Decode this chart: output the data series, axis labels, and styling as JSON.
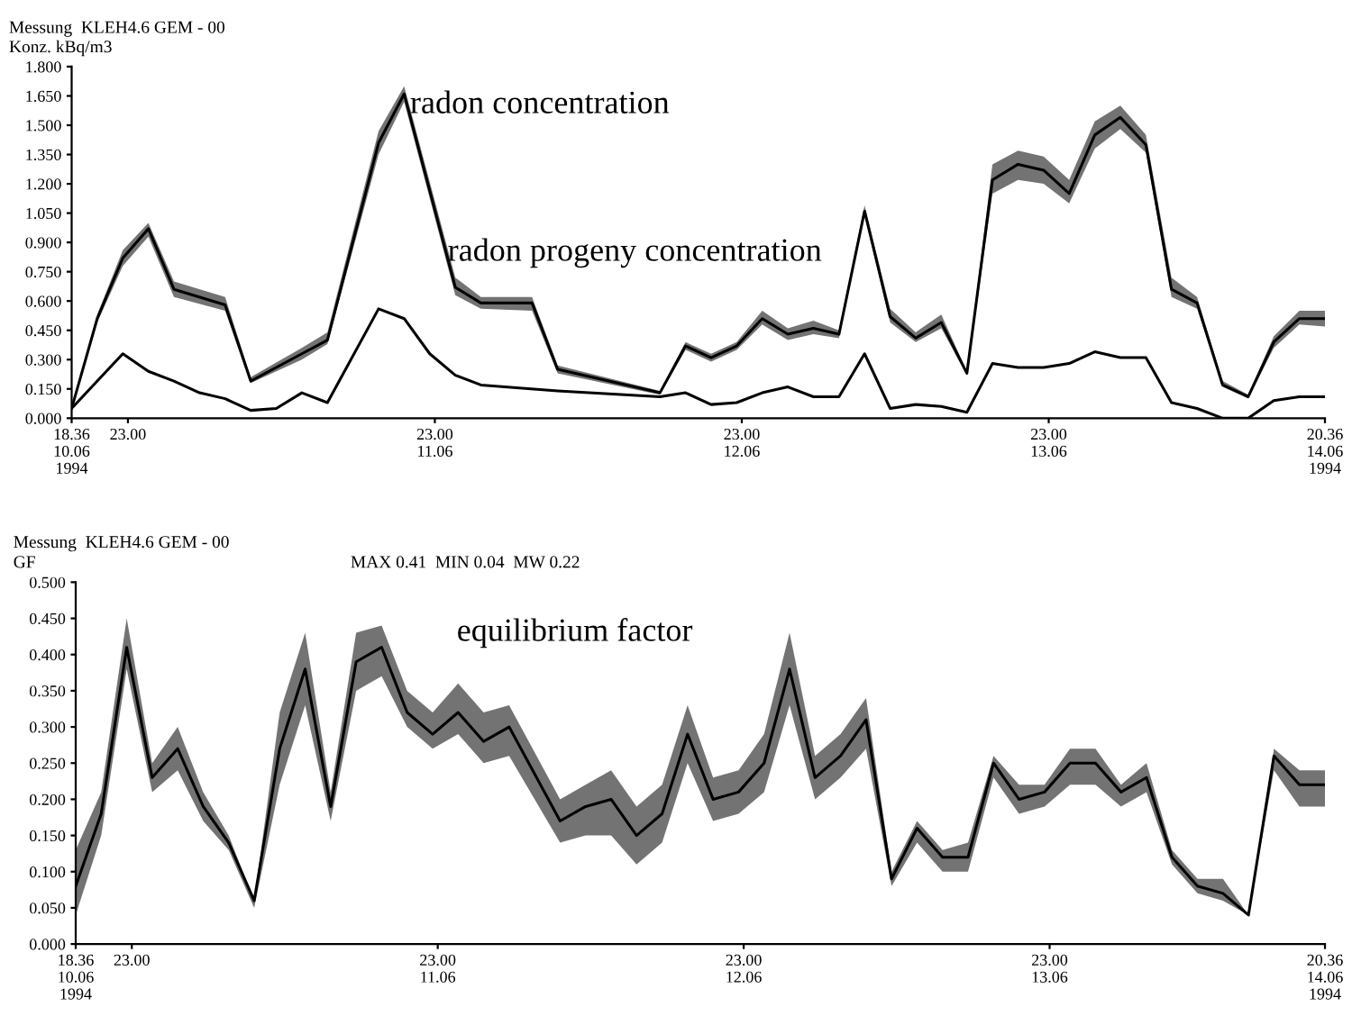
{
  "chart_data": [
    {
      "type": "line",
      "title": "Messung  KLEH4.6 GEM - 00",
      "ylabel": "Konz. kBq/m3",
      "xlim": [
        "1994-06-10T18:36",
        "1994-06-14T20:36"
      ],
      "xticks": [
        {
          "value": "1994-06-10T18:36",
          "label": "18.36\n10.06\n1994"
        },
        {
          "value": "1994-06-10T23:00",
          "label": "23.00"
        },
        {
          "value": "1994-06-11T23:00",
          "label": "23.00\n11.06"
        },
        {
          "value": "1994-06-12T23:00",
          "label": "23.00\n12.06"
        },
        {
          "value": "1994-06-13T23:00",
          "label": "23.00\n13.06"
        },
        {
          "value": "1994-06-14T20:36",
          "label": "20.36\n14.06\n1994"
        }
      ],
      "ylim": [
        0,
        1.8
      ],
      "yticks": [
        {
          "value": 0,
          "label": "0.000"
        },
        {
          "value": 0.15,
          "label": "0.150"
        },
        {
          "value": 0.3,
          "label": "0.300"
        },
        {
          "value": 0.45,
          "label": "0.450"
        },
        {
          "value": 0.6,
          "label": "0.600"
        },
        {
          "value": 0.75,
          "label": "0.750"
        },
        {
          "value": 0.9,
          "label": "0.900"
        },
        {
          "value": 1.05,
          "label": "1.050"
        },
        {
          "value": 1.2,
          "label": "1.200"
        },
        {
          "value": 1.35,
          "label": "1.350"
        },
        {
          "value": 1.5,
          "label": "1.500"
        },
        {
          "value": 1.65,
          "label": "1.650"
        },
        {
          "value": 1.8,
          "label": "1.800"
        }
      ],
      "grid": false,
      "marker": "none",
      "line_style": "solid",
      "annotations": [
        "radon concentration",
        "radon progeny concentration"
      ],
      "series": [
        {
          "color": "#000000",
          "x": [
            "1994-06-10T18:36",
            "1994-06-10T20:36",
            "1994-06-10T22:36",
            "1994-06-11T00:36",
            "1994-06-11T02:36",
            "1994-06-11T06:36",
            "1994-06-11T08:36",
            "1994-06-11T12:36",
            "1994-06-11T14:36",
            "1994-06-11T18:36",
            "1994-06-11T20:36",
            "1994-06-12T00:36",
            "1994-06-12T02:36",
            "1994-06-12T06:36",
            "1994-06-12T08:36",
            "1994-06-12T16:36",
            "1994-06-12T18:36",
            "1994-06-12T20:36",
            "1994-06-12T22:36",
            "1994-06-13T00:36",
            "1994-06-13T02:36",
            "1994-06-13T04:36",
            "1994-06-13T06:36",
            "1994-06-13T08:36",
            "1994-06-13T10:36",
            "1994-06-13T12:36",
            "1994-06-13T14:36",
            "1994-06-13T16:36",
            "1994-06-13T18:36",
            "1994-06-13T20:36",
            "1994-06-13T22:36",
            "1994-06-14T00:36",
            "1994-06-14T02:36",
            "1994-06-14T04:36",
            "1994-06-14T06:36",
            "1994-06-14T08:36",
            "1994-06-14T10:36",
            "1994-06-14T12:36",
            "1994-06-14T14:36",
            "1994-06-14T16:36",
            "1994-06-14T18:36",
            "1994-06-14T20:36"
          ],
          "values": [
            0.05,
            0.51,
            0.82,
            0.97,
            0.66,
            0.58,
            0.19,
            0.33,
            0.4,
            1.41,
            1.66,
            0.67,
            0.59,
            0.59,
            0.25,
            0.13,
            0.37,
            0.31,
            0.37,
            0.51,
            0.43,
            0.46,
            0.43,
            1.06,
            0.52,
            0.41,
            0.49,
            0.23,
            1.22,
            1.3,
            1.27,
            1.15,
            1.45,
            1.54,
            1.4,
            0.66,
            0.59,
            0.17,
            0.11,
            0.39,
            0.51,
            0.51
          ],
          "lower": [
            0.05,
            0.49,
            0.78,
            0.93,
            0.62,
            0.55,
            0.18,
            0.3,
            0.38,
            1.35,
            1.62,
            0.63,
            0.56,
            0.55,
            0.23,
            0.12,
            0.35,
            0.29,
            0.35,
            0.48,
            0.4,
            0.43,
            0.41,
            1.04,
            0.49,
            0.39,
            0.46,
            0.22,
            1.15,
            1.22,
            1.2,
            1.1,
            1.38,
            1.48,
            1.36,
            0.62,
            0.56,
            0.16,
            0.1,
            0.36,
            0.48,
            0.47
          ],
          "upper": [
            0.05,
            0.53,
            0.86,
            1.0,
            0.7,
            0.62,
            0.21,
            0.36,
            0.44,
            1.47,
            1.7,
            0.72,
            0.62,
            0.62,
            0.27,
            0.14,
            0.39,
            0.33,
            0.39,
            0.55,
            0.46,
            0.5,
            0.45,
            1.09,
            0.56,
            0.44,
            0.53,
            0.24,
            1.3,
            1.37,
            1.34,
            1.22,
            1.52,
            1.6,
            1.45,
            0.72,
            0.62,
            0.19,
            0.12,
            0.42,
            0.55,
            0.55
          ]
        },
        {
          "color": "#000000",
          "x": [
            "1994-06-10T18:36",
            "1994-06-10T22:36",
            "1994-06-11T00:36",
            "1994-06-11T02:36",
            "1994-06-11T04:36",
            "1994-06-11T06:36",
            "1994-06-11T08:36",
            "1994-06-11T10:36",
            "1994-06-11T12:36",
            "1994-06-11T14:36",
            "1994-06-11T18:36",
            "1994-06-11T20:36",
            "1994-06-11T22:36",
            "1994-06-12T00:36",
            "1994-06-12T02:36",
            "1994-06-12T08:36",
            "1994-06-12T16:36",
            "1994-06-12T18:36",
            "1994-06-12T20:36",
            "1994-06-12T22:36",
            "1994-06-13T00:36",
            "1994-06-13T02:36",
            "1994-06-13T04:36",
            "1994-06-13T06:36",
            "1994-06-13T08:36",
            "1994-06-13T10:36",
            "1994-06-13T12:36",
            "1994-06-13T14:36",
            "1994-06-13T16:36",
            "1994-06-13T18:36",
            "1994-06-13T20:36",
            "1994-06-13T22:36",
            "1994-06-14T00:36",
            "1994-06-14T02:36",
            "1994-06-14T04:36",
            "1994-06-14T06:36",
            "1994-06-14T08:36",
            "1994-06-14T10:36",
            "1994-06-14T12:36",
            "1994-06-14T14:36",
            "1994-06-14T16:36",
            "1994-06-14T18:36",
            "1994-06-14T20:36"
          ],
          "values": [
            0.05,
            0.33,
            0.24,
            0.19,
            0.13,
            0.1,
            0.04,
            0.05,
            0.13,
            0.08,
            0.56,
            0.51,
            0.33,
            0.22,
            0.17,
            0.14,
            0.11,
            0.13,
            0.07,
            0.08,
            0.13,
            0.16,
            0.11,
            0.11,
            0.33,
            0.05,
            0.07,
            0.06,
            0.03,
            0.28,
            0.26,
            0.26,
            0.28,
            0.34,
            0.31,
            0.31,
            0.08,
            0.05,
            0.0,
            0.0,
            0.09,
            0.11,
            0.11
          ]
        }
      ]
    },
    {
      "type": "line",
      "title": "Messung  KLEH4.6 GEM - 00",
      "ylabel": "GF",
      "subtitle": "MAX 0.41  MIN 0.04  MW 0.22",
      "xlim": [
        "1994-06-10T18:36",
        "1994-06-14T20:36"
      ],
      "xticks": [
        {
          "value": "1994-06-10T18:36",
          "label": "18.36\n10.06\n1994"
        },
        {
          "value": "1994-06-10T23:00",
          "label": "23.00"
        },
        {
          "value": "1994-06-11T23:00",
          "label": "23.00\n11.06"
        },
        {
          "value": "1994-06-12T23:00",
          "label": "23.00\n12.06"
        },
        {
          "value": "1994-06-13T23:00",
          "label": "23.00\n13.06"
        },
        {
          "value": "1994-06-14T20:36",
          "label": "20.36\n14.06\n1994"
        }
      ],
      "ylim": [
        0,
        0.5
      ],
      "yticks": [
        {
          "value": 0,
          "label": "0.000"
        },
        {
          "value": 0.05,
          "label": "0.050"
        },
        {
          "value": 0.1,
          "label": "0.100"
        },
        {
          "value": 0.15,
          "label": "0.150"
        },
        {
          "value": 0.2,
          "label": "0.200"
        },
        {
          "value": 0.25,
          "label": "0.250"
        },
        {
          "value": 0.3,
          "label": "0.300"
        },
        {
          "value": 0.35,
          "label": "0.350"
        },
        {
          "value": 0.4,
          "label": "0.400"
        },
        {
          "value": 0.45,
          "label": "0.450"
        },
        {
          "value": 0.5,
          "label": "0.500"
        }
      ],
      "grid": false,
      "marker": "none",
      "line_style": "solid",
      "annotations": [
        "equilibrium factor"
      ],
      "series": [
        {
          "color": "#000000",
          "x": [
            "1994-06-10T18:36",
            "1994-06-10T20:36",
            "1994-06-10T22:36",
            "1994-06-11T00:36",
            "1994-06-11T02:36",
            "1994-06-11T04:36",
            "1994-06-11T06:36",
            "1994-06-11T08:36",
            "1994-06-11T10:36",
            "1994-06-11T12:36",
            "1994-06-11T14:36",
            "1994-06-11T16:36",
            "1994-06-11T18:36",
            "1994-06-11T20:36",
            "1994-06-11T22:36",
            "1994-06-12T00:36",
            "1994-06-12T02:36",
            "1994-06-12T04:36",
            "1994-06-12T08:36",
            "1994-06-12T10:36",
            "1994-06-12T12:36",
            "1994-06-12T14:36",
            "1994-06-12T16:36",
            "1994-06-12T18:36",
            "1994-06-12T20:36",
            "1994-06-12T22:36",
            "1994-06-13T00:36",
            "1994-06-13T02:36",
            "1994-06-13T04:36",
            "1994-06-13T06:36",
            "1994-06-13T08:36",
            "1994-06-13T10:36",
            "1994-06-13T12:36",
            "1994-06-13T14:36",
            "1994-06-13T16:36",
            "1994-06-13T18:36",
            "1994-06-13T20:36",
            "1994-06-13T22:36",
            "1994-06-14T00:36",
            "1994-06-14T02:36",
            "1994-06-14T04:36",
            "1994-06-14T06:36",
            "1994-06-14T08:36",
            "1994-06-14T10:36",
            "1994-06-14T12:36",
            "1994-06-14T14:36",
            "1994-06-14T16:36",
            "1994-06-14T18:36",
            "1994-06-14T20:36"
          ],
          "values": [
            0.08,
            0.18,
            0.41,
            0.23,
            0.27,
            0.19,
            0.14,
            0.06,
            0.27,
            0.38,
            0.19,
            0.39,
            0.41,
            0.32,
            0.29,
            0.32,
            0.28,
            0.3,
            0.17,
            0.19,
            0.2,
            0.15,
            0.18,
            0.29,
            0.2,
            0.21,
            0.25,
            0.38,
            0.23,
            0.26,
            0.31,
            0.09,
            0.16,
            0.12,
            0.12,
            0.25,
            0.2,
            0.21,
            0.25,
            0.25,
            0.21,
            0.23,
            0.12,
            0.08,
            0.07,
            0.04,
            0.26,
            0.22,
            0.22
          ],
          "lower": [
            0.04,
            0.15,
            0.38,
            0.21,
            0.24,
            0.17,
            0.13,
            0.05,
            0.22,
            0.33,
            0.17,
            0.35,
            0.37,
            0.3,
            0.27,
            0.29,
            0.25,
            0.26,
            0.14,
            0.15,
            0.15,
            0.11,
            0.14,
            0.25,
            0.17,
            0.18,
            0.21,
            0.33,
            0.2,
            0.23,
            0.27,
            0.08,
            0.14,
            0.1,
            0.1,
            0.23,
            0.18,
            0.19,
            0.22,
            0.22,
            0.19,
            0.21,
            0.11,
            0.07,
            0.06,
            0.04,
            0.24,
            0.19,
            0.19
          ],
          "upper": [
            0.13,
            0.21,
            0.45,
            0.25,
            0.3,
            0.21,
            0.15,
            0.06,
            0.32,
            0.43,
            0.21,
            0.43,
            0.44,
            0.35,
            0.32,
            0.36,
            0.32,
            0.33,
            0.2,
            0.22,
            0.24,
            0.19,
            0.22,
            0.33,
            0.23,
            0.24,
            0.29,
            0.43,
            0.26,
            0.29,
            0.34,
            0.1,
            0.17,
            0.13,
            0.14,
            0.26,
            0.22,
            0.22,
            0.27,
            0.27,
            0.22,
            0.25,
            0.13,
            0.09,
            0.09,
            0.04,
            0.27,
            0.24,
            0.24
          ]
        }
      ]
    }
  ]
}
